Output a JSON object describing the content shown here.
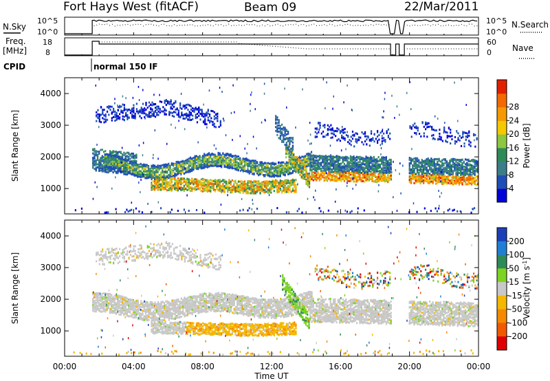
{
  "header": {
    "station": "Fort Hays West (fitACF)",
    "beam": "Beam 09",
    "date": "22/Mar/2011"
  },
  "panels": {
    "nsky_label": "N.Sky",
    "nsky_ticks": [
      "10^5",
      "10^0"
    ],
    "nsearch_label": "N.Search",
    "nsearch_ticks": [
      "10^5",
      "10^0"
    ],
    "freq_label_1": "Freq.",
    "freq_label_2": "[MHz]",
    "freq_ticks": [
      "18",
      "8"
    ],
    "nave_label": "Nave",
    "nave_ticks": [
      "60",
      "0"
    ],
    "cpid_label": "CPID",
    "cpid_value": "normal 150 IF"
  },
  "chart_data": [
    {
      "type": "heatmap",
      "title": "",
      "xlabel": "Time UT",
      "ylabel": "Slant Range [km]",
      "x_ticks": [
        "00:00",
        "04:00",
        "08:00",
        "12:00",
        "16:00",
        "20:00",
        "00:00"
      ],
      "x_range_hours": [
        0,
        24
      ],
      "y_ticks": [
        1000,
        2000,
        3000,
        4000
      ],
      "ylim": [
        200,
        4500
      ],
      "colorbar": {
        "label": "Power [dB]",
        "ticks": [
          "4",
          "8",
          "12",
          "16",
          "20",
          "24",
          "28"
        ],
        "colors": [
          "#0000d8",
          "#1f4fb5",
          "#3c7d8a",
          "#2e8b57",
          "#8dc63f",
          "#f5c800",
          "#f59a00",
          "#f26a00",
          "#e22000"
        ]
      },
      "bands": [
        {
          "start_h": 1.6,
          "end_h": 14.5,
          "ranges_km": "1300-2500",
          "level": "low-mid"
        },
        {
          "start_h": 14.5,
          "end_h": 24,
          "ranges_km": "1200-2200",
          "level": "high"
        },
        {
          "start_h": 5.0,
          "end_h": 13.2,
          "ranges_km": "900-1500",
          "level": "high"
        }
      ]
    },
    {
      "type": "heatmap",
      "title": "",
      "xlabel": "Time UT",
      "ylabel": "Slant Range [km]",
      "x_ticks": [
        "00:00",
        "04:00",
        "08:00",
        "12:00",
        "16:00",
        "20:00",
        "00:00"
      ],
      "x_range_hours": [
        0,
        24
      ],
      "y_ticks": [
        1000,
        2000,
        3000,
        4000
      ],
      "ylim": [
        200,
        4500
      ],
      "colorbar": {
        "label": "Velocity [m s^-1]",
        "label_main": "Velocity [m s",
        "label_sup": "-1",
        "label_end": "]",
        "ticks": [
          "200",
          "100",
          "50",
          "15",
          "-15",
          "-50",
          "-100",
          "-200"
        ],
        "colors": [
          "#1c3fb8",
          "#1f7fd6",
          "#2e8b57",
          "#7ed321",
          "#c8c8c8",
          "#f5b800",
          "#f58a00",
          "#f25a00",
          "#e00000"
        ]
      }
    }
  ]
}
